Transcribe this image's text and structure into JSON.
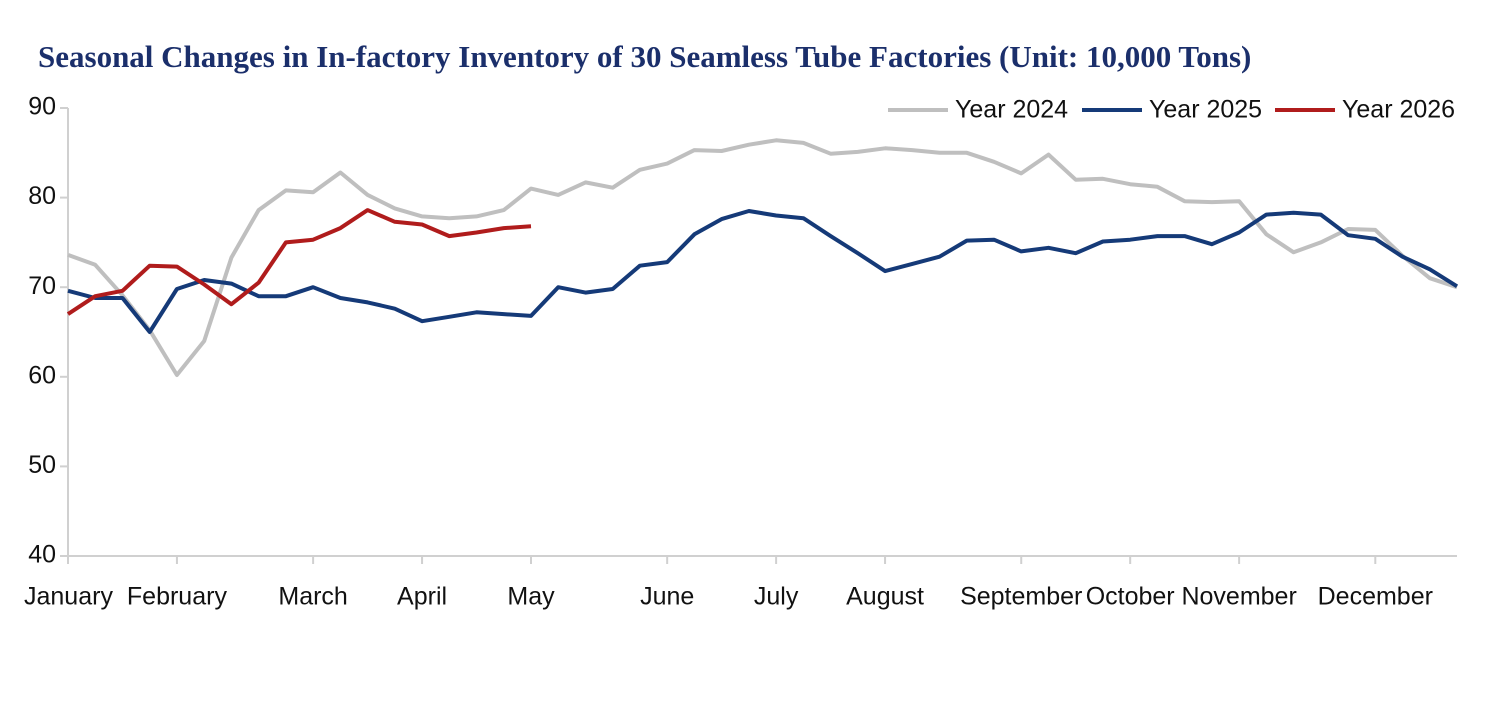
{
  "chart_data": {
    "type": "line",
    "title": "Seasonal Changes in In-factory Inventory of 30 Seamless Tube Factories (Unit: 10,000 Tons)",
    "categories": [
      "January",
      null,
      null,
      null,
      "February",
      null,
      null,
      null,
      null,
      "March",
      null,
      null,
      null,
      "April",
      null,
      null,
      null,
      "May",
      null,
      null,
      null,
      null,
      "June",
      null,
      null,
      null,
      "July",
      null,
      null,
      null,
      "August",
      null,
      null,
      null,
      null,
      "September",
      null,
      null,
      null,
      "October",
      null,
      null,
      null,
      "November",
      null,
      null,
      null,
      null,
      "December",
      null,
      null,
      null
    ],
    "series": [
      {
        "name": "Year 2024",
        "color": "#bfbfbf",
        "values": [
          73.6,
          72.5,
          69.1,
          65.2,
          60.2,
          64,
          73.3,
          78.6,
          80.8,
          80.6,
          82.8,
          80.3,
          78.8,
          77.9,
          77.7,
          77.9,
          78.6,
          81,
          80.3,
          81.7,
          81.1,
          83.1,
          83.8,
          85.3,
          85.2,
          85.9,
          86.4,
          86.1,
          84.9,
          85.1,
          85.5,
          85.3,
          85,
          85,
          84,
          82.7,
          84.8,
          82,
          82.1,
          81.5,
          81.2,
          79.6,
          79.5,
          79.6,
          75.9,
          73.9,
          75,
          76.5,
          76.4,
          73.5,
          71,
          70
        ]
      },
      {
        "name": "Year 2025",
        "color": "#153a78",
        "values": [
          69.6,
          68.8,
          68.8,
          65,
          69.8,
          70.8,
          70.4,
          69,
          69,
          70,
          68.8,
          68.3,
          67.6,
          66.2,
          66.7,
          67.2,
          67,
          66.8,
          70,
          69.4,
          69.8,
          72.4,
          72.8,
          75.9,
          77.6,
          78.5,
          78,
          77.7,
          75.7,
          73.8,
          71.8,
          72.6,
          73.4,
          75.2,
          75.3,
          74,
          74.4,
          73.8,
          75.1,
          75.3,
          75.7,
          75.7,
          74.8,
          76.1,
          78.1,
          78.3,
          78.1,
          75.8,
          75.4,
          73.4,
          72,
          70.1
        ]
      },
      {
        "name": "Year 2026",
        "color": "#b01c1c",
        "values": [
          67,
          69,
          69.6,
          72.4,
          72.3,
          70.3,
          68.1,
          70.5,
          75,
          75.3,
          76.6,
          78.6,
          77.3,
          77,
          75.7,
          76.1,
          76.6,
          76.8,
          null,
          null,
          null,
          null,
          null,
          null,
          null,
          null,
          null,
          null,
          null,
          null,
          null,
          null,
          null,
          null,
          null,
          null,
          null,
          null,
          null,
          null,
          null,
          null,
          null,
          null,
          null,
          null,
          null,
          null,
          null,
          null,
          null,
          null
        ]
      }
    ],
    "ylim": [
      40,
      90
    ],
    "yticks": [
      40,
      50,
      60,
      70,
      80,
      90
    ],
    "legend": "top-right"
  }
}
